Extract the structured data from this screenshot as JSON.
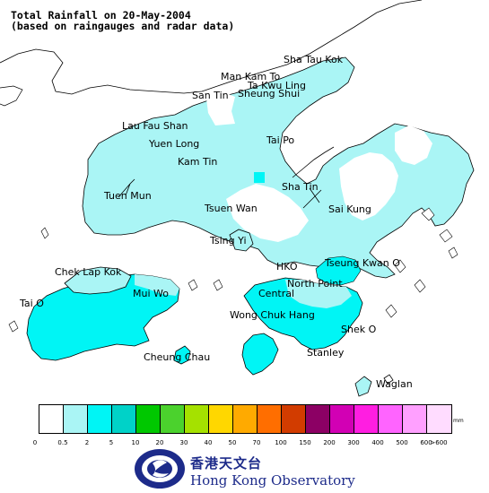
{
  "title": {
    "line1": "Total Rainfall on 20-May-2004",
    "line2": "(based on raingauges and radar data)"
  },
  "colors": {
    "land": "#ffffff",
    "coastline": "#000000",
    "rain_0_5_2": "#aaf5f5",
    "rain_2_5": "#00f5f5"
  },
  "places": [
    {
      "id": "sha-tau-kok",
      "label": "Sha Tau Kok"
    },
    {
      "id": "man-kam-to",
      "label": "Man Kam To"
    },
    {
      "id": "ta-kwu-ling",
      "label": "Ta Kwu Ling"
    },
    {
      "id": "san-tin",
      "label": "San Tin"
    },
    {
      "id": "sheung-shui",
      "label": "Sheung Shui"
    },
    {
      "id": "lau-fau-shan",
      "label": "Lau Fau Shan"
    },
    {
      "id": "yuen-long",
      "label": "Yuen Long"
    },
    {
      "id": "tai-po",
      "label": "Tai Po"
    },
    {
      "id": "kam-tin",
      "label": "Kam Tin"
    },
    {
      "id": "sha-tin",
      "label": "Sha Tin"
    },
    {
      "id": "tuen-mun",
      "label": "Tuen Mun"
    },
    {
      "id": "tsuen-wan",
      "label": "Tsuen Wan"
    },
    {
      "id": "sai-kung",
      "label": "Sai Kung"
    },
    {
      "id": "tsing-yi",
      "label": "Tsing Yi"
    },
    {
      "id": "chek-lap-kok",
      "label": "Chek Lap Kok"
    },
    {
      "id": "hko",
      "label": "HKO"
    },
    {
      "id": "tseung-kwan-o",
      "label": "Tseung Kwan O"
    },
    {
      "id": "north-point",
      "label": "North Point"
    },
    {
      "id": "mui-wo",
      "label": "Mui Wo"
    },
    {
      "id": "central",
      "label": "Central"
    },
    {
      "id": "tai-o",
      "label": "Tai O"
    },
    {
      "id": "wong-chuk-hang",
      "label": "Wong Chuk Hang"
    },
    {
      "id": "shek-o",
      "label": "Shek O"
    },
    {
      "id": "cheung-chau",
      "label": "Cheung Chau"
    },
    {
      "id": "stanley",
      "label": "Stanley"
    },
    {
      "id": "waglan",
      "label": "Waglan"
    }
  ],
  "legend": {
    "unit": "mm",
    "colors": [
      "#ffffff",
      "#aaf5f5",
      "#00f5f5",
      "#00d2c8",
      "#00c800",
      "#4bd22d",
      "#a5e100",
      "#ffd700",
      "#ffaa00",
      "#ff6e00",
      "#d23c00",
      "#8c0064",
      "#d200b4",
      "#ff1ee1",
      "#ff64ff",
      "#ffa0ff",
      "#ffdcff"
    ],
    "ticks": [
      "0",
      "0.5",
      "2",
      "5",
      "10",
      "20",
      "30",
      "40",
      "50",
      "70",
      "100",
      "150",
      "200",
      "300",
      "400",
      "500",
      "600",
      ">600"
    ]
  },
  "organization": {
    "name_cn": "香港天文台",
    "name_en": "Hong Kong Observatory"
  }
}
